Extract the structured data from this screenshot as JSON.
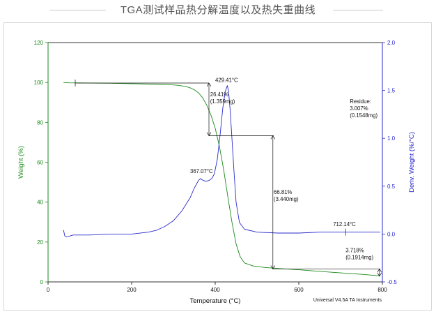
{
  "page_title": "TGA测试样品热分解温度以及热失重曲线",
  "colors": {
    "weight_series": "#1a8a1a",
    "deriv_series": "#2a2acc",
    "annotation": "#111111",
    "axis_left_label": "#1a8a1a",
    "axis_right_label": "#1a1acc"
  },
  "chart_data": {
    "type": "line",
    "title": "",
    "xlabel": "Temperature (°C)",
    "ylabel": "Weight (%)",
    "y2label": "Deriv. Weight (%/°C)",
    "xlim": [
      0,
      800
    ],
    "ylim": [
      0,
      120
    ],
    "y2lim": [
      -0.5,
      2.0
    ],
    "x_ticks": [
      "0",
      "200",
      "400",
      "600",
      "800"
    ],
    "y_ticks": [
      "0",
      "20",
      "40",
      "60",
      "80",
      "100",
      "120"
    ],
    "y2_ticks": [
      "-0.5",
      "0.0",
      "0.5",
      "1.0",
      "1.5",
      "2.0"
    ],
    "footer": "Universal V4.5A TA Instruments",
    "series": [
      {
        "axis": "left",
        "x": [
          37,
          50,
          100,
          150,
          200,
          240,
          270,
          290,
          310,
          330,
          340,
          350,
          360,
          370,
          380,
          390,
          400,
          410,
          420,
          430,
          440,
          450,
          460,
          470,
          490,
          520,
          560,
          600,
          650,
          700,
          750,
          795
        ],
        "values": [
          100,
          99.8,
          99.7,
          99.6,
          99.4,
          99.2,
          99.0,
          98.9,
          98.6,
          98.0,
          97.3,
          96.3,
          94.8,
          92.3,
          88.5,
          83.5,
          77.0,
          68.0,
          56.5,
          43.0,
          30.0,
          19.0,
          12.5,
          9.5,
          8.0,
          7.2,
          6.6,
          6.1,
          5.3,
          4.5,
          3.8,
          3.0
        ]
      },
      {
        "axis": "right",
        "x": [
          37,
          40,
          45,
          60,
          100,
          150,
          200,
          240,
          260,
          280,
          300,
          320,
          340,
          350,
          360,
          365,
          367,
          372,
          378,
          385,
          392,
          398,
          405,
          412,
          418,
          424,
          429,
          432,
          436,
          440,
          445,
          450,
          458,
          470,
          500,
          550,
          600,
          650,
          712,
          750,
          795
        ],
        "values": [
          0.04,
          -0.02,
          -0.03,
          -0.01,
          -0.01,
          0.0,
          0.0,
          0.02,
          0.04,
          0.08,
          0.14,
          0.24,
          0.38,
          0.48,
          0.56,
          0.58,
          0.57,
          0.56,
          0.55,
          0.56,
          0.58,
          0.63,
          0.78,
          1.05,
          1.31,
          1.49,
          1.55,
          1.49,
          1.28,
          1.0,
          0.65,
          0.33,
          0.12,
          0.05,
          0.02,
          0.01,
          0.01,
          0.02,
          0.02,
          0.02,
          0.02
        ]
      }
    ],
    "annotations": [
      {
        "text": "429.41°C"
      },
      {
        "text": "26.41%"
      },
      {
        "text": "(1.359mg)"
      },
      {
        "text": "367.07°C"
      },
      {
        "text": "66.81%"
      },
      {
        "text": "(3.440mg)"
      },
      {
        "text": "712.14°C"
      },
      {
        "text": "3.718%"
      },
      {
        "text": "(0.1914mg)"
      },
      {
        "text": "Residue:"
      },
      {
        "text": "3.007%"
      },
      {
        "text": "(0.1548mg)"
      }
    ]
  }
}
